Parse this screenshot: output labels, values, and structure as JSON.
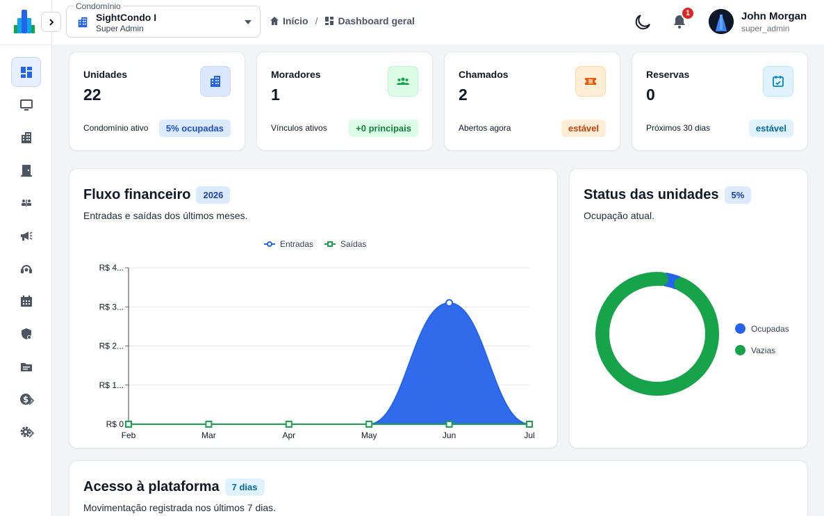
{
  "colors": {
    "primary": "#2563eb",
    "green": "#16a34a",
    "orange": "#d97706"
  },
  "header": {
    "condo_legend": "Condomínio",
    "condo_name": "SightCondo I",
    "condo_role": "Super Admin",
    "breadcrumb_home": "Início",
    "breadcrumb_sep": "/",
    "breadcrumb_current": "Dashboard geral",
    "notification_count": "1",
    "user_name": "John Morgan",
    "user_role": "super_admin"
  },
  "sidebar": {
    "items": [
      {
        "icon": "dashboard-icon",
        "active": true
      },
      {
        "icon": "monitor-icon"
      },
      {
        "icon": "building-icon"
      },
      {
        "icon": "door-icon"
      },
      {
        "icon": "residents-icon"
      },
      {
        "icon": "megaphone-icon"
      },
      {
        "icon": "support-agent-icon"
      },
      {
        "icon": "calendar-icon"
      },
      {
        "icon": "security-icon"
      },
      {
        "icon": "folder-icon"
      },
      {
        "icon": "finance-icon",
        "submenu": true
      },
      {
        "icon": "settings-icon",
        "submenu": true
      }
    ]
  },
  "stats": [
    {
      "title": "Unidades",
      "value": "22",
      "sub": "Condomínio ativo",
      "pill": "5% ocupadas",
      "icon": "building-icon"
    },
    {
      "title": "Moradores",
      "value": "1",
      "sub": "Vínculos ativos",
      "pill": "+0 principais",
      "icon": "group-icon"
    },
    {
      "title": "Chamados",
      "value": "2",
      "sub": "Abertos agora",
      "pill": "estável",
      "icon": "ticket-icon"
    },
    {
      "title": "Reservas",
      "value": "0",
      "sub": "Próximos 30 dias",
      "pill": "estável",
      "icon": "calendar-check-icon"
    }
  ],
  "finance": {
    "title": "Fluxo financeiro",
    "pill": "2026",
    "subtitle": "Entradas e saídas dos últimos meses."
  },
  "units_status": {
    "title": "Status das unidades",
    "pill": "5%",
    "subtitle": "Ocupação atual."
  },
  "access": {
    "title": "Acesso à plataforma",
    "pill": "7 dias",
    "subtitle": "Movimentação registrada nos últimos 7 dias."
  },
  "chart_data": [
    {
      "type": "area",
      "categories": [
        "Feb",
        "Mar",
        "Apr",
        "May",
        "Jun",
        "Jul"
      ],
      "series": [
        {
          "name": "Entradas",
          "values": [
            0,
            0,
            0,
            0,
            3100,
            0
          ],
          "color": "#2563eb"
        },
        {
          "name": "Saídas",
          "values": [
            0,
            0,
            0,
            0,
            0,
            0
          ],
          "color": "#16a34a"
        }
      ],
      "y_ticks": [
        "R$ 0",
        "R$ 1...",
        "R$ 2...",
        "R$ 3...",
        "R$ 4..."
      ],
      "ylim": [
        0,
        4000
      ],
      "legend_position": "top-center",
      "grid": true
    },
    {
      "type": "pie",
      "subtype": "donut",
      "labels": [
        "Ocupadas",
        "Vazias"
      ],
      "values": [
        1,
        21
      ],
      "colors": [
        "#2563eb",
        "#16a34a"
      ],
      "legend_position": "right"
    }
  ]
}
